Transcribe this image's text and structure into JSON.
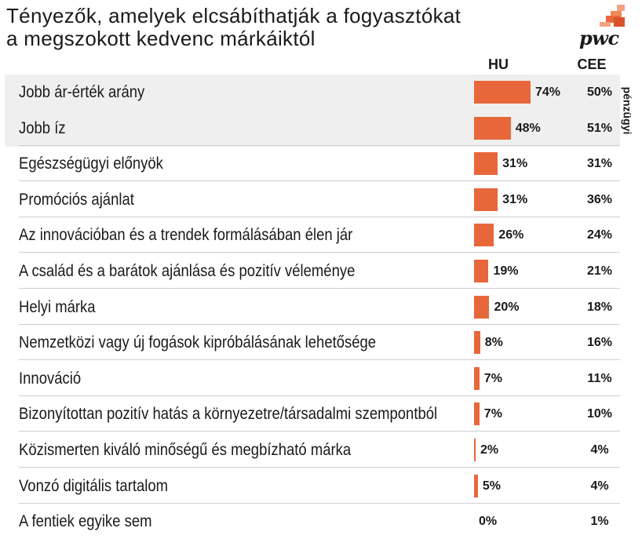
{
  "header": {
    "title_line1": "Tényezők, amelyek elcsábíthatják a fogyasztókat",
    "title_line2": "a megszokott kedvenc márkáiktól",
    "logo_text": "pwc"
  },
  "colors": {
    "bar": "#e8673a",
    "logo_orange": "#e8673a",
    "logo_light": "#f3a37f",
    "shade": "#efefef"
  },
  "chart_data": {
    "type": "bar",
    "orientation": "horizontal",
    "title": "Tényezők, amelyek elcsábíthatják a fogyasztókat a megszokott kedvenc márkáiktól",
    "side_label": "pénzügyi",
    "series_labels": {
      "hu": "HU",
      "cee": "CEE"
    },
    "unit": "%",
    "categories": [
      "Jobb ár-érték arány",
      "Jobb íz",
      "Egészségügyi előnyök",
      "Promóciós ajánlat",
      "Az innovációban és a trendek formálásában élen jár",
      "A család és a barátok ajánlása és pozitív véleménye",
      "Helyi márka",
      "Nemzetközi vagy új fogások kipróbálásának lehetősége",
      "Innováció",
      "Bizonyítottan pozitív hatás a környezetre/társadalmi szempontból",
      "Közismerten kiváló minőségű és megbízható márka",
      "Vonzó digitális tartalom",
      "A fentiek egyike sem"
    ],
    "series": [
      {
        "name": "HU",
        "values": [
          74,
          48,
          31,
          31,
          26,
          19,
          20,
          8,
          7,
          7,
          2,
          5,
          0
        ]
      },
      {
        "name": "CEE",
        "values": [
          50,
          51,
          31,
          36,
          24,
          21,
          18,
          16,
          11,
          10,
          4,
          4,
          1
        ]
      }
    ],
    "highlighted_rows": [
      0,
      1
    ],
    "xlim": [
      0,
      100
    ]
  }
}
